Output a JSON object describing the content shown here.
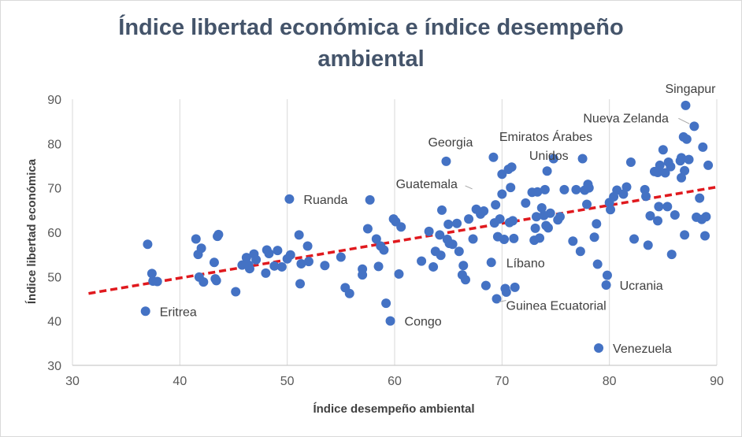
{
  "chart_data": {
    "type": "scatter",
    "title_line1": "Índice libertad económica e índice desempeño",
    "title_line2": "ambiental",
    "xlabel": "Índice desempeño ambiental",
    "ylabel": "Índice libertad económica",
    "xlim": [
      30,
      90
    ],
    "ylim": [
      30,
      90
    ],
    "x_ticks": [
      30,
      40,
      50,
      60,
      70,
      80,
      90
    ],
    "y_ticks": [
      30,
      40,
      50,
      60,
      70,
      80,
      90
    ],
    "grid": "vertical",
    "marker_color": "#4472c4",
    "trendline": {
      "style": "dashed",
      "color": "#e0191e",
      "x": [
        31.5,
        90
      ],
      "y": [
        46.2,
        70.2
      ]
    },
    "points": [
      [
        36.8,
        42.2
      ],
      [
        37.0,
        57.3
      ],
      [
        37.4,
        50.7
      ],
      [
        37.5,
        49.0
      ],
      [
        37.9,
        48.9
      ],
      [
        41.5,
        58.5
      ],
      [
        41.7,
        55.0
      ],
      [
        41.8,
        49.9
      ],
      [
        42.0,
        56.4
      ],
      [
        42.2,
        48.8
      ],
      [
        43.2,
        53.2
      ],
      [
        43.3,
        49.5
      ],
      [
        43.4,
        49.1
      ],
      [
        43.5,
        59.1
      ],
      [
        43.6,
        59.5
      ],
      [
        45.2,
        46.6
      ],
      [
        45.8,
        52.6
      ],
      [
        46.2,
        54.3
      ],
      [
        46.4,
        52.6
      ],
      [
        46.5,
        51.8
      ],
      [
        46.9,
        55.1
      ],
      [
        47.1,
        53.8
      ],
      [
        48.0,
        50.8
      ],
      [
        48.1,
        56.0
      ],
      [
        48.3,
        55.2
      ],
      [
        48.8,
        52.4
      ],
      [
        49.1,
        55.9
      ],
      [
        49.5,
        52.2
      ],
      [
        50.0,
        54.0
      ],
      [
        50.2,
        67.5
      ],
      [
        50.3,
        54.9
      ],
      [
        51.1,
        59.4
      ],
      [
        51.2,
        48.4
      ],
      [
        51.3,
        52.9
      ],
      [
        51.9,
        56.9
      ],
      [
        52.0,
        53.4
      ],
      [
        53.5,
        52.5
      ],
      [
        55.0,
        54.4
      ],
      [
        55.4,
        47.5
      ],
      [
        55.8,
        46.2
      ],
      [
        57.0,
        50.4
      ],
      [
        57.0,
        51.7
      ],
      [
        57.5,
        60.8
      ],
      [
        57.7,
        67.3
      ],
      [
        58.3,
        58.5
      ],
      [
        58.5,
        52.3
      ],
      [
        58.7,
        56.9
      ],
      [
        59.0,
        56.0
      ],
      [
        59.2,
        44.0
      ],
      [
        59.6,
        40.0
      ],
      [
        59.9,
        63.0
      ],
      [
        60.1,
        62.4
      ],
      [
        60.4,
        50.6
      ],
      [
        60.6,
        61.2
      ],
      [
        62.5,
        53.5
      ],
      [
        63.2,
        60.2
      ],
      [
        63.6,
        52.2
      ],
      [
        63.8,
        55.7
      ],
      [
        64.2,
        59.4
      ],
      [
        64.3,
        54.8
      ],
      [
        64.4,
        65.0
      ],
      [
        64.8,
        76.0
      ],
      [
        64.9,
        58.4
      ],
      [
        65.0,
        61.8
      ],
      [
        65.1,
        57.5
      ],
      [
        65.4,
        57.3
      ],
      [
        65.8,
        62.0
      ],
      [
        66.0,
        55.7
      ],
      [
        66.3,
        50.4
      ],
      [
        66.4,
        52.5
      ],
      [
        66.6,
        49.3
      ],
      [
        66.9,
        63.0
      ],
      [
        67.3,
        58.5
      ],
      [
        67.6,
        65.2
      ],
      [
        68.0,
        64.1
      ],
      [
        68.3,
        64.8
      ],
      [
        68.5,
        48.0
      ],
      [
        69.0,
        53.2
      ],
      [
        69.2,
        76.9
      ],
      [
        69.3,
        62.1
      ],
      [
        69.4,
        66.2
      ],
      [
        69.5,
        45.0
      ],
      [
        69.6,
        59.0
      ],
      [
        69.8,
        63.0
      ],
      [
        70.0,
        73.1
      ],
      [
        70.0,
        68.6
      ],
      [
        70.2,
        58.4
      ],
      [
        70.3,
        47.3
      ],
      [
        70.4,
        46.5
      ],
      [
        70.6,
        74.2
      ],
      [
        70.7,
        62.2
      ],
      [
        70.8,
        70.1
      ],
      [
        70.9,
        74.7
      ],
      [
        71.0,
        62.6
      ],
      [
        71.1,
        58.6
      ],
      [
        71.2,
        47.6
      ],
      [
        72.2,
        66.6
      ],
      [
        72.8,
        69.0
      ],
      [
        73.0,
        58.2
      ],
      [
        73.1,
        60.9
      ],
      [
        73.2,
        63.5
      ],
      [
        73.3,
        69.1
      ],
      [
        73.5,
        58.7
      ],
      [
        73.7,
        65.5
      ],
      [
        73.9,
        63.8
      ],
      [
        74.0,
        69.6
      ],
      [
        74.1,
        61.5
      ],
      [
        74.2,
        73.8
      ],
      [
        74.3,
        61.0
      ],
      [
        74.5,
        64.3
      ],
      [
        74.8,
        76.6
      ],
      [
        75.2,
        62.8
      ],
      [
        75.4,
        63.5
      ],
      [
        75.8,
        69.6
      ],
      [
        76.6,
        58.0
      ],
      [
        76.9,
        69.6
      ],
      [
        77.3,
        55.7
      ],
      [
        77.5,
        76.6
      ],
      [
        77.7,
        69.5
      ],
      [
        77.9,
        66.3
      ],
      [
        78.0,
        70.8
      ],
      [
        78.1,
        70.0
      ],
      [
        78.6,
        58.9
      ],
      [
        78.8,
        61.9
      ],
      [
        78.9,
        52.8
      ],
      [
        79.0,
        33.9
      ],
      [
        79.7,
        48.1
      ],
      [
        79.8,
        50.3
      ],
      [
        80.0,
        66.7
      ],
      [
        80.1,
        65.1
      ],
      [
        80.4,
        68.0
      ],
      [
        80.7,
        69.5
      ],
      [
        81.3,
        68.6
      ],
      [
        81.6,
        70.2
      ],
      [
        82.0,
        75.8
      ],
      [
        82.3,
        58.5
      ],
      [
        83.3,
        69.6
      ],
      [
        83.4,
        68.1
      ],
      [
        83.6,
        57.1
      ],
      [
        83.8,
        63.7
      ],
      [
        84.2,
        73.7
      ],
      [
        84.5,
        73.5
      ],
      [
        84.5,
        62.6
      ],
      [
        84.6,
        65.8
      ],
      [
        84.7,
        75.1
      ],
      [
        85.0,
        78.6
      ],
      [
        85.2,
        73.4
      ],
      [
        85.4,
        65.8
      ],
      [
        85.5,
        75.8
      ],
      [
        85.7,
        74.8
      ],
      [
        85.8,
        55.0
      ],
      [
        86.1,
        63.9
      ],
      [
        86.6,
        76.1
      ],
      [
        86.7,
        72.3
      ],
      [
        86.7,
        76.8
      ],
      [
        86.9,
        81.5
      ],
      [
        87.0,
        73.9
      ],
      [
        87.0,
        59.4
      ],
      [
        87.1,
        88.6
      ],
      [
        87.2,
        81.0
      ],
      [
        87.4,
        76.4
      ],
      [
        87.9,
        83.9
      ],
      [
        88.1,
        63.4
      ],
      [
        88.4,
        67.7
      ],
      [
        88.6,
        62.9
      ],
      [
        88.7,
        79.2
      ],
      [
        88.9,
        59.2
      ],
      [
        89.0,
        63.5
      ],
      [
        89.2,
        75.1
      ]
    ],
    "annotations": [
      {
        "text": "Singapur",
        "x": 87.1,
        "y": 88.6
      },
      {
        "text": "Nueva Zelanda",
        "x": 87.9,
        "y": 83.9
      },
      {
        "text": "Emiratos Árabes",
        "x": 72.9,
        "y": 80.8
      },
      {
        "text": "Unidos",
        "x": 72.9,
        "y": 80.8
      },
      {
        "text": "Georgia",
        "x": 64.8,
        "y": 76.0
      },
      {
        "text": "Guatemala",
        "x": 67.6,
        "y": 69.6
      },
      {
        "text": "Ruanda",
        "x": 50.2,
        "y": 67.5
      },
      {
        "text": "Líbano",
        "x": 69.0,
        "y": 53.2
      },
      {
        "text": "Ucrania",
        "x": 79.7,
        "y": 48.1
      },
      {
        "text": "Guinea Ecuatorial",
        "x": 69.5,
        "y": 45.0
      },
      {
        "text": "Eritrea",
        "x": 36.8,
        "y": 42.2
      },
      {
        "text": "Congo",
        "x": 59.6,
        "y": 40.0
      },
      {
        "text": "Venezuela",
        "x": 79.0,
        "y": 33.9
      }
    ]
  }
}
